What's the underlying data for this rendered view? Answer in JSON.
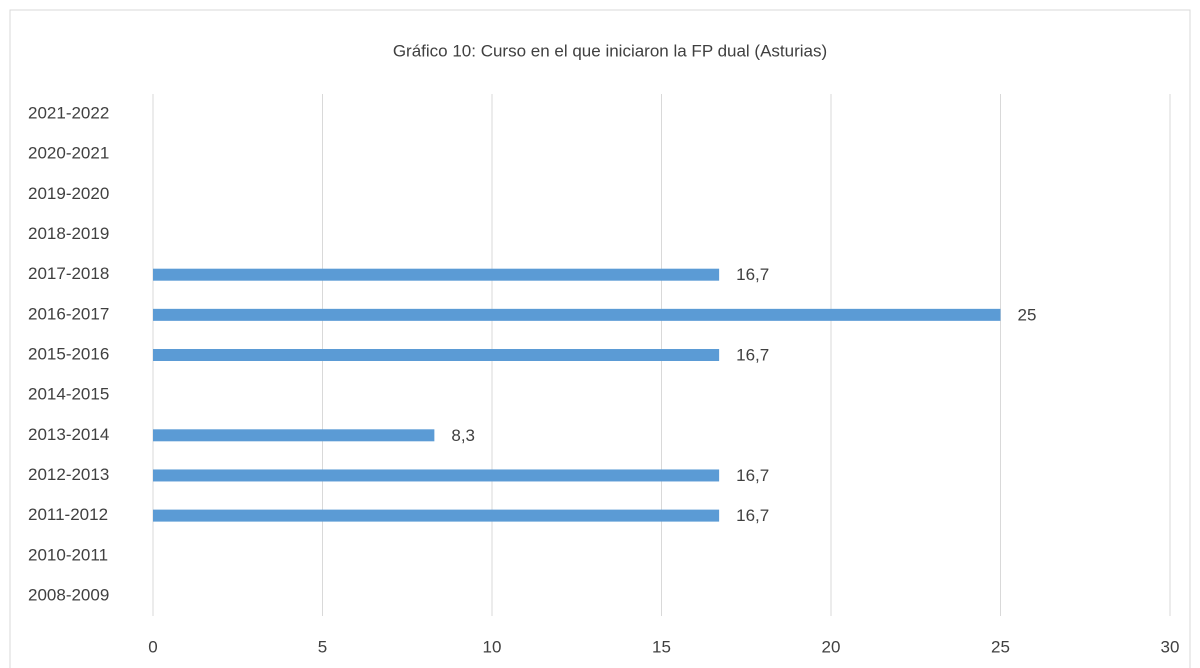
{
  "chart_data": {
    "type": "bar",
    "orientation": "horizontal",
    "title": "Gráfico 10: Curso en el que iniciaron la FP dual (Asturias)",
    "categories": [
      "2008-2009",
      "2010-2011",
      "2011-2012",
      "2012-2013",
      "2013-2014",
      "2014-2015",
      "2015-2016",
      "2016-2017",
      "2017-2018",
      "2018-2019",
      "2019-2020",
      "2020-2021",
      "2021-2022"
    ],
    "values": [
      null,
      null,
      16.7,
      16.7,
      8.3,
      null,
      16.7,
      25,
      16.7,
      null,
      null,
      null,
      null
    ],
    "value_labels": [
      null,
      null,
      "16,7",
      "16,7",
      "8,3",
      null,
      "16,7",
      "25",
      "16,7",
      null,
      null,
      null,
      null
    ],
    "color": "#5b9bd5",
    "xlim": [
      0,
      30
    ],
    "xticks": [
      0,
      5,
      10,
      15,
      20,
      25,
      30
    ],
    "grid": true
  }
}
